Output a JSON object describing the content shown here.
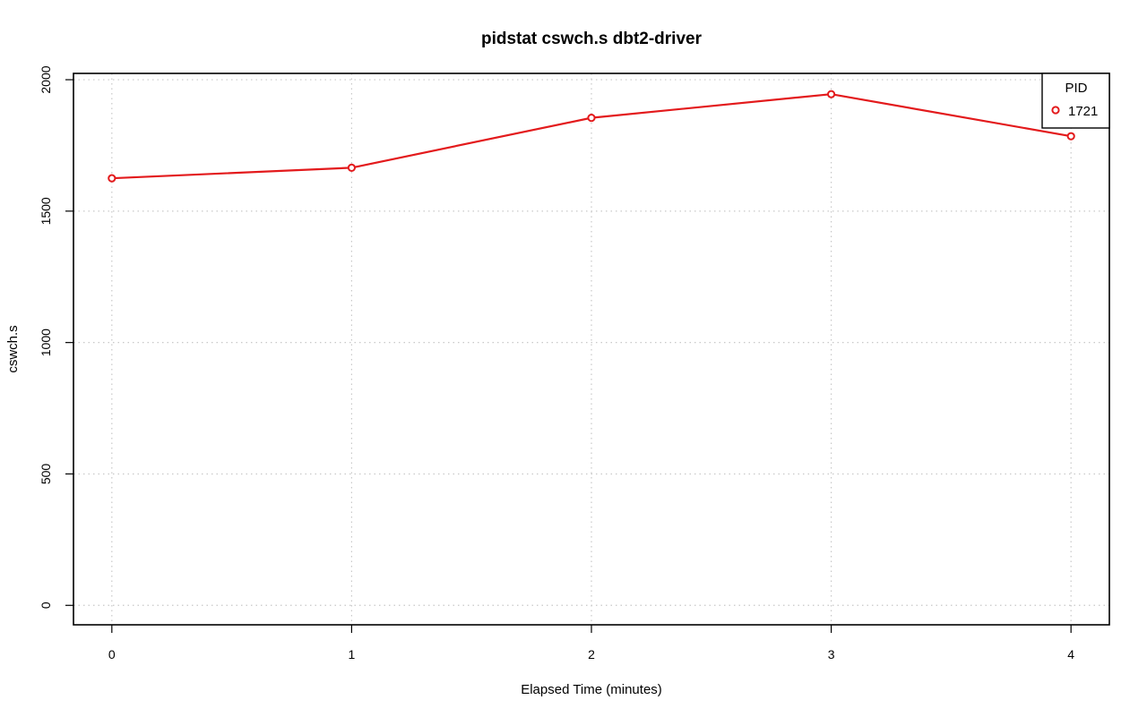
{
  "chart_data": {
    "type": "line",
    "title": "pidstat cswch.s dbt2-driver",
    "xlabel": "Elapsed Time (minutes)",
    "ylabel": "cswch.s",
    "x": [
      0,
      1,
      2,
      3,
      4
    ],
    "xticks": [
      "0",
      "1",
      "2",
      "3",
      "4"
    ],
    "yticks": [
      "0",
      "500",
      "1000",
      "1500",
      "2000"
    ],
    "xlim": [
      -0.16,
      4.16
    ],
    "ylim": [
      -74,
      2024
    ],
    "grid": true,
    "series": [
      {
        "name": "1721",
        "values": [
          1625,
          1665,
          1855,
          1945,
          1785
        ],
        "color": "#e31a1c"
      }
    ],
    "legend": {
      "title": "PID",
      "position": "top-right"
    }
  }
}
